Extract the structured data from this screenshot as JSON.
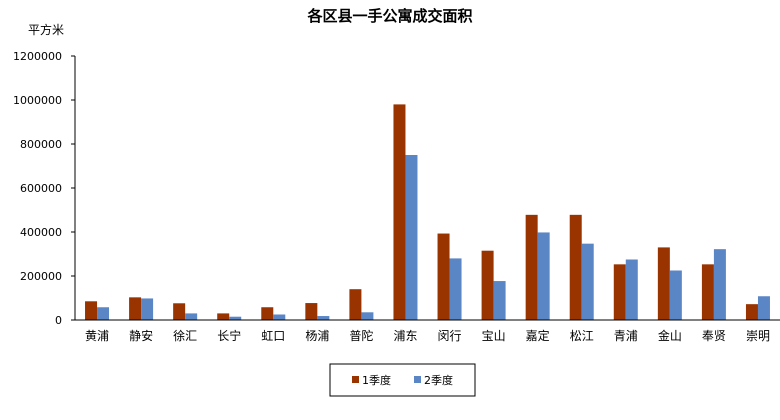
{
  "chart_data": {
    "type": "bar",
    "title": "各区县一手公寓成交面积",
    "ylabel": "平方米",
    "xlabel": "",
    "ylim": [
      0,
      1200000
    ],
    "yticks": [
      0,
      200000,
      400000,
      600000,
      800000,
      1000000,
      1200000
    ],
    "grid": false,
    "legend_position": "bottom-center",
    "categories": [
      "黄浦",
      "静安",
      "徐汇",
      "长宁",
      "虹口",
      "杨浦",
      "普陀",
      "浦东",
      "闵行",
      "宝山",
      "嘉定",
      "松江",
      "青浦",
      "金山",
      "奉贤",
      "崇明"
    ],
    "series": [
      {
        "name": "1季度",
        "color": "#993300",
        "values": [
          85000,
          103000,
          76000,
          30000,
          58000,
          77000,
          140000,
          980000,
          393000,
          315000,
          478000,
          478000,
          253000,
          330000,
          253000,
          72000
        ]
      },
      {
        "name": "2季度",
        "color": "#5b86c5",
        "values": [
          58000,
          98000,
          30000,
          15000,
          25000,
          18000,
          35000,
          750000,
          280000,
          177000,
          398000,
          347000,
          275000,
          225000,
          322000,
          108000
        ]
      }
    ]
  }
}
